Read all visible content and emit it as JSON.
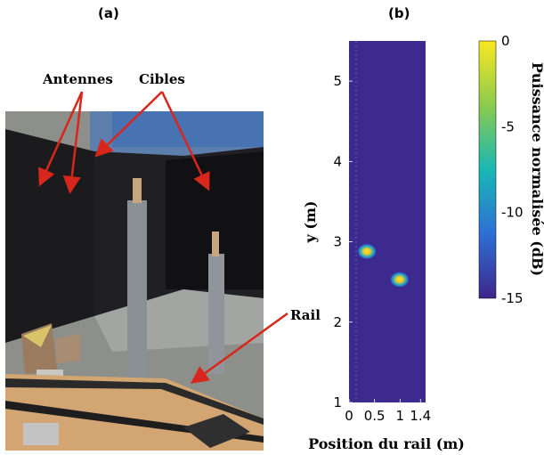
{
  "panel_a": {
    "label": "(a)",
    "annotations": {
      "antennas": "Antennes",
      "targets": "Cibles",
      "rail": "Rail"
    }
  },
  "panel_b": {
    "label": "(b)"
  },
  "colors": {
    "background": "#3c2a8e",
    "hot": "#f9e721",
    "arrow": "#d9261c"
  },
  "chart_data": {
    "type": "heatmap",
    "xlabel": "Position du rail (m)",
    "ylabel": "y (m)",
    "xlim": [
      0,
      1.5
    ],
    "ylim": [
      1,
      5.5
    ],
    "x_ticks": [
      "0",
      "0.5",
      "1",
      "1.4"
    ],
    "x_tick_values": [
      0,
      0.5,
      1,
      1.4
    ],
    "y_ticks": [
      "1",
      "2",
      "3",
      "4",
      "5"
    ],
    "y_tick_values": [
      1,
      2,
      3,
      4,
      5
    ],
    "colorbar": {
      "label": "Puissance normalisée (dB)",
      "range": [
        -15,
        0
      ],
      "ticks": [
        "0",
        "-5",
        "-10",
        "-15"
      ],
      "tick_values": [
        0,
        -5,
        -10,
        -15
      ]
    },
    "hotspots": [
      {
        "x": 0.35,
        "y": 2.88,
        "level_db": -1
      },
      {
        "x": 0.99,
        "y": 2.53,
        "level_db": 0
      }
    ]
  }
}
